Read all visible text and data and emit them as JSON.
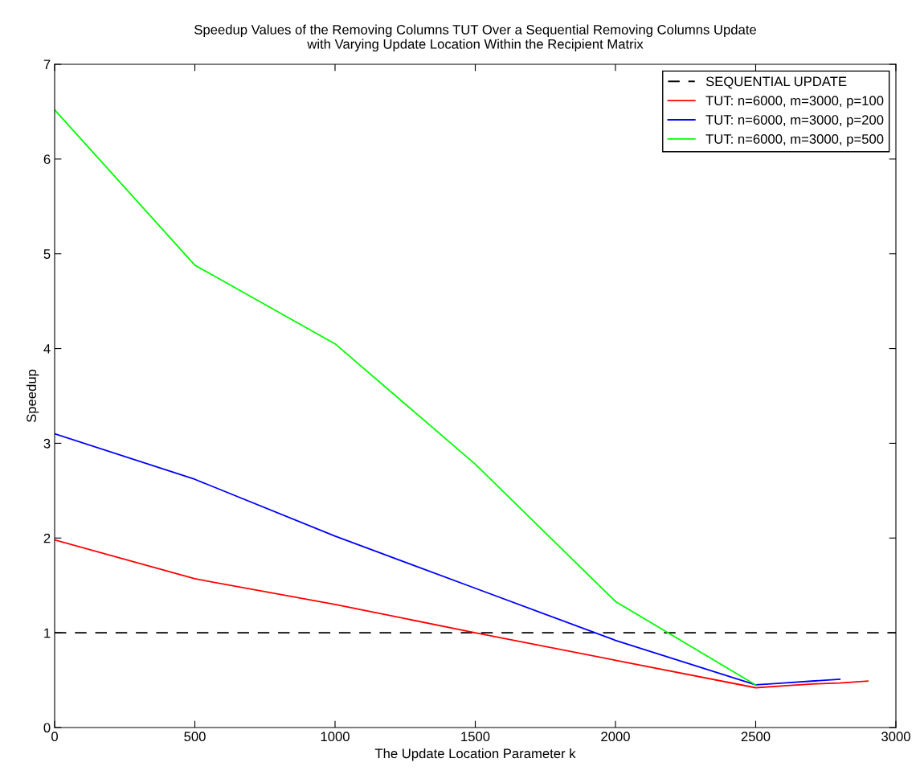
{
  "chart_data": {
    "type": "line",
    "title": "Speedup Values of the Removing Columns TUT Over a Sequential Removing Columns Update\nwith Varying Update Location Within the Recipient Matrix",
    "xlabel": "The Update Location Parameter k",
    "ylabel": "Speedup",
    "xlim": [
      0,
      3000
    ],
    "ylim": [
      0,
      7
    ],
    "xticks": [
      0,
      500,
      1000,
      1500,
      2000,
      2500,
      3000
    ],
    "yticks": [
      0,
      1,
      2,
      3,
      4,
      5,
      6,
      7
    ],
    "grid": false,
    "legend": "top right",
    "series": [
      {
        "name": "SEQUENTIAL UPDATE",
        "color": "#000000",
        "line_style": "dashed",
        "x": [
          0,
          3000
        ],
        "values": [
          1,
          1
        ]
      },
      {
        "name": "TUT: n=6000, m=3000, p=100",
        "color": "#ff0000",
        "x": [
          0,
          500,
          1000,
          1500,
          2000,
          2500,
          2600,
          2700,
          2800,
          2900
        ],
        "values": [
          1.98,
          1.57,
          1.3,
          1.0,
          0.71,
          0.42,
          0.44,
          0.46,
          0.47,
          0.49
        ]
      },
      {
        "name": "TUT: n=6000, m=3000, p=200",
        "color": "#0000ff",
        "x": [
          0,
          500,
          1000,
          1500,
          2000,
          2500,
          2600,
          2700,
          2800
        ],
        "values": [
          3.1,
          2.62,
          2.02,
          1.47,
          0.92,
          0.45,
          0.47,
          0.49,
          0.51
        ]
      },
      {
        "name": "TUT: n=6000, m=3000, p=500",
        "color": "#00ff00",
        "x": [
          0,
          500,
          1000,
          1500,
          2000,
          2500
        ],
        "values": [
          6.52,
          4.88,
          4.05,
          2.78,
          1.33,
          0.45
        ]
      }
    ]
  }
}
